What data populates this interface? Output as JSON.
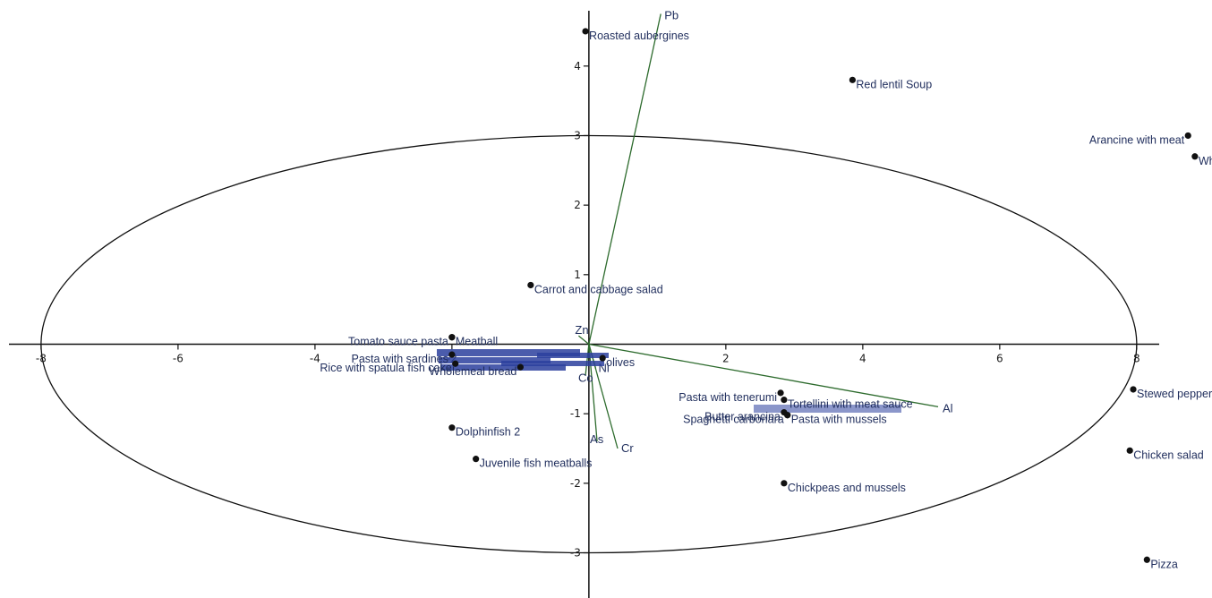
{
  "chart_data": {
    "type": "scatter",
    "title": "",
    "xlabel": "",
    "ylabel": "",
    "xlim": [
      -8.6,
      9.1
    ],
    "ylim": [
      -3.65,
      4.95
    ],
    "x_ticks": [
      -8,
      -6,
      -4,
      -2,
      2,
      4,
      6,
      8
    ],
    "y_ticks": [
      -3,
      -2,
      -1,
      1,
      2,
      3,
      4
    ],
    "grid": false,
    "legend": "none",
    "ellipse": {
      "cx": 0,
      "cy": 0,
      "rx": 8,
      "ry": 3
    },
    "colors": {
      "axis": "#111111",
      "point": "#111111",
      "label": "#1f2d5c",
      "vector": "#2d6b2d"
    },
    "points": [
      {
        "label": "Roasted aubergines",
        "x": -0.05,
        "y": 4.5,
        "anchor": "start"
      },
      {
        "label": "Red lentil Soup",
        "x": 3.85,
        "y": 3.8,
        "anchor": "start"
      },
      {
        "label": "Arancine with meat",
        "x": 8.75,
        "y": 3.0,
        "anchor": "end"
      },
      {
        "label": "White bread",
        "x": 8.85,
        "y": 2.7,
        "anchor": "start"
      },
      {
        "label": "Carrot and cabbage salad",
        "x": -0.85,
        "y": 0.85,
        "anchor": "start"
      },
      {
        "label": "Tomato sauce pasta",
        "x": -2.0,
        "y": 0.1,
        "anchor": "end"
      },
      {
        "label": "Meatball",
        "x": -2.0,
        "y": 0.1,
        "anchor": "start"
      },
      {
        "label": "Pasta with sardines",
        "x": -2.0,
        "y": -0.15,
        "anchor": "end"
      },
      {
        "label": "Rice with spatula fish cake",
        "x": -1.95,
        "y": -0.28,
        "anchor": "end"
      },
      {
        "label": "Wholemeal bread",
        "x": -1.0,
        "y": -0.33,
        "anchor": "end"
      },
      {
        "label": "olives",
        "x": 0.2,
        "y": -0.2,
        "anchor": "start"
      },
      {
        "label": "Dolphinfish 2",
        "x": -2.0,
        "y": -1.2,
        "anchor": "start"
      },
      {
        "label": "Juvenile fish meatballs",
        "x": -1.65,
        "y": -1.65,
        "anchor": "start"
      },
      {
        "label": "Pasta with tenerumi",
        "x": 2.8,
        "y": -0.7,
        "anchor": "end"
      },
      {
        "label": "Tortellini with meat sauce",
        "x": 2.85,
        "y": -0.8,
        "anchor": "start"
      },
      {
        "label": "Butter arancina",
        "x": 2.85,
        "y": -0.98,
        "anchor": "end"
      },
      {
        "label": "Spaghetti carbonara",
        "x": 2.9,
        "y": -1.02,
        "anchor": "end"
      },
      {
        "label": "Pasta with mussels",
        "x": 2.9,
        "y": -1.02,
        "anchor": "start"
      },
      {
        "label": "Chickpeas and mussels",
        "x": 2.85,
        "y": -2.0,
        "anchor": "start"
      },
      {
        "label": "Stewed peppers",
        "x": 7.95,
        "y": -0.65,
        "anchor": "start"
      },
      {
        "label": "Chicken salad",
        "x": 7.9,
        "y": -1.53,
        "anchor": "start"
      },
      {
        "label": "Pizza",
        "x": 8.15,
        "y": -3.1,
        "anchor": "start"
      }
    ],
    "vectors": [
      {
        "label": "Pb",
        "x": 1.05,
        "y": 4.75
      },
      {
        "label": "Al",
        "x": 5.1,
        "y": -0.9
      },
      {
        "label": "Cr",
        "x": 0.42,
        "y": -1.5
      },
      {
        "label": "As",
        "x": 0.12,
        "y": -1.4
      },
      {
        "label": "Ni",
        "x": 0.1,
        "y": -0.35
      },
      {
        "label": "Co",
        "x": -0.05,
        "y": -0.45
      },
      {
        "label": "Zn",
        "x": -0.15,
        "y": 0.12
      }
    ]
  }
}
